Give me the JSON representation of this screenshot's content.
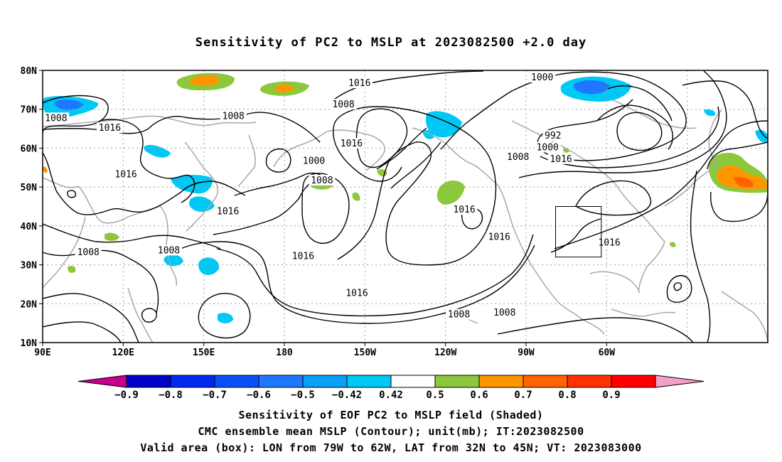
{
  "title": "Sensitivity of PC2 to MSLP at 2023082500 +2.0 day",
  "axes": {
    "lat_labels": [
      "80N",
      "70N",
      "60N",
      "50N",
      "40N",
      "30N",
      "20N",
      "10N"
    ],
    "lon_labels": [
      "90E",
      "120E",
      "150E",
      "180",
      "150W",
      "120W",
      "90W",
      "60W"
    ]
  },
  "colorbar": {
    "tick_labels": [
      "-0.9",
      "-0.8",
      "-0.7",
      "-0.6",
      "-0.5",
      "-0.42",
      "0.42",
      "0.5",
      "0.6",
      "0.7",
      "0.8",
      "0.9"
    ],
    "colors": [
      "#c8008c",
      "#0000c8",
      "#0028f0",
      "#0a50fa",
      "#1e78ff",
      "#0aa0fa",
      "#00c8f5",
      "#ffffff",
      "#8cc83c",
      "#ff9600",
      "#ff6400",
      "#ff3200",
      "#ff0000",
      "#f5a0c8"
    ]
  },
  "contour_labels": [
    {
      "text": "1016",
      "lon": -152,
      "lat": 76.5
    },
    {
      "text": "1008",
      "lon": -158,
      "lat": 71
    },
    {
      "text": "1000",
      "lon": -84,
      "lat": 78
    },
    {
      "text": "1008",
      "lon": 95,
      "lat": 67.5
    },
    {
      "text": "1016",
      "lon": 115,
      "lat": 65
    },
    {
      "text": "1008",
      "lon": 161,
      "lat": 68
    },
    {
      "text": "1016",
      "lon": -155,
      "lat": 61
    },
    {
      "text": "1000",
      "lon": -169,
      "lat": 56.5
    },
    {
      "text": "1008",
      "lon": -166,
      "lat": 51.5
    },
    {
      "text": "992",
      "lon": -80,
      "lat": 63
    },
    {
      "text": "1000",
      "lon": -82,
      "lat": 60
    },
    {
      "text": "1008",
      "lon": -93,
      "lat": 57.5
    },
    {
      "text": "1016",
      "lon": -77,
      "lat": 57
    },
    {
      "text": "1016",
      "lon": 121,
      "lat": 53
    },
    {
      "text": "1016",
      "lon": 159,
      "lat": 43.5
    },
    {
      "text": "1016",
      "lon": -113,
      "lat": 44
    },
    {
      "text": "1016",
      "lon": -100,
      "lat": 37
    },
    {
      "text": "1016",
      "lon": -59,
      "lat": 35.5
    },
    {
      "text": "1008",
      "lon": 107,
      "lat": 33
    },
    {
      "text": "1008",
      "lon": 137,
      "lat": 33.5
    },
    {
      "text": "1016",
      "lon": -173,
      "lat": 32
    },
    {
      "text": "1016",
      "lon": -153,
      "lat": 22.5
    },
    {
      "text": "1008",
      "lon": -115,
      "lat": 17
    },
    {
      "text": "1008",
      "lon": -98,
      "lat": 17.5
    }
  ],
  "captions": {
    "line1": "Sensitivity of EOF PC2 to MSLP field (Shaded)",
    "line2": "CMC ensemble mean MSLP (Contour); unit(mb); IT:2023082500",
    "line3": "Valid area (box): LON from 79W to 62W, LAT from 32N to 45N; VT: 2023083000"
  },
  "valid_box": {
    "lon_min": -79,
    "lon_max": -62,
    "lat_min": 32,
    "lat_max": 45
  }
}
